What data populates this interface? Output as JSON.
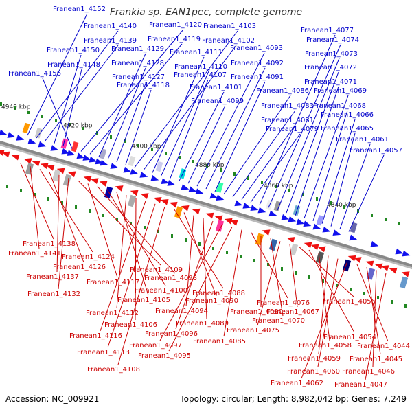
{
  "title": "Frankia sp. EAN1pec, complete genome",
  "footer": {
    "accession": "Accession: NC_009921",
    "summary": "Topology: circular; Length: 8,982,042 bp; Genes: 7,249"
  },
  "colors": {
    "forward_label": "#0000cc",
    "reverse_label": "#cc0000",
    "forward_arrow": "#1111ee",
    "reverse_arrow": "#ee1111",
    "backbone": "#888888",
    "tick": "#228822"
  },
  "position_labels": [
    "4940 kbp",
    "4920 kbp",
    "4900 kbp",
    "4880 kbp",
    "4860 kbp",
    "4840 kbp"
  ],
  "forward_genes": [
    "Franean1_4152",
    "Franean1_4140",
    "Franean1_4139",
    "Franean1_4150",
    "Franean1_4148",
    "Franean1_4156",
    "Franean1_4120",
    "Franean1_4119",
    "Franean1_4129",
    "Franean1_4128",
    "Franean1_4127",
    "Franean1_4118",
    "Franean1_4103",
    "Franean1_4102",
    "Franean1_4111",
    "Franean1_4110",
    "Franean1_4107",
    "Franean1_4101",
    "Franean1_4099",
    "Franean1_4093",
    "Franean1_4092",
    "Franean1_4091",
    "Franean1_4086",
    "Franean1_4083",
    "Franean1_4081",
    "Franean1_4079",
    "Franean1_4077",
    "Franean1_4074",
    "Franean1_4073",
    "Franean1_4072",
    "Franean1_4071",
    "Franean1_4069",
    "Franean1_4068",
    "Franean1_4066",
    "Franean1_4065",
    "Franean1_4061",
    "Franean1_4057"
  ],
  "reverse_genes": [
    "Franean1_4138",
    "Franean1_4141",
    "Franean1_4124",
    "Franean1_4126",
    "Franean1_4137",
    "Franean1_4132",
    "Franean1_4109",
    "Franean1_4117",
    "Franean1_4098",
    "Franean1_4100",
    "Franean1_4105",
    "Franean1_4112",
    "Franean1_4106",
    "Franean1_4116",
    "Franean1_4113",
    "Franean1_4108",
    "Franean1_4088",
    "Franean1_4090",
    "Franean1_4094",
    "Franean1_4089",
    "Franean1_4096",
    "Franean1_4097",
    "Franean1_4095",
    "Franean1_4085",
    "Franean1_4076",
    "Franean1_4080",
    "Franean1_4070",
    "Franean1_4075",
    "Franean1_4067",
    "Franean1_4056",
    "Franean1_4054",
    "Franean1_4058",
    "Franean1_4059",
    "Franean1_4060",
    "Franean1_4062",
    "Franean1_4044",
    "Franean1_4045",
    "Franean1_4046",
    "Franean1_4047"
  ]
}
